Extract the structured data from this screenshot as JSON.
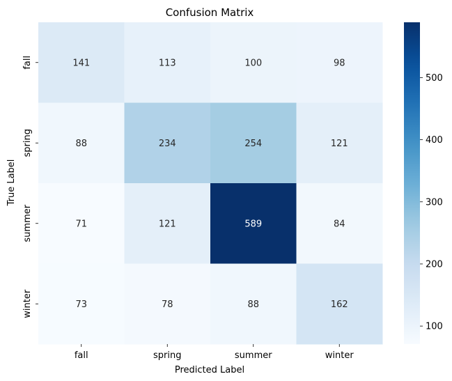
{
  "chart_data": {
    "type": "heatmap",
    "title": "Confusion Matrix",
    "xlabel": "Predicted Label",
    "ylabel": "True Label",
    "x_categories": [
      "fall",
      "spring",
      "summer",
      "winter"
    ],
    "y_categories": [
      "fall",
      "spring",
      "summer",
      "winter"
    ],
    "values": [
      [
        141,
        113,
        100,
        98
      ],
      [
        88,
        234,
        254,
        121
      ],
      [
        71,
        121,
        589,
        84
      ],
      [
        73,
        78,
        88,
        162
      ]
    ],
    "colormap": "Blues",
    "color_range": [
      71,
      589
    ],
    "colorbar": {
      "ticks": [
        100,
        200,
        300,
        400,
        500
      ],
      "position": "right"
    }
  }
}
